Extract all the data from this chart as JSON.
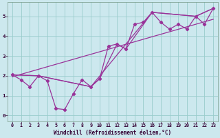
{
  "title": "",
  "xlabel": "Windchill (Refroidissement éolien,°C)",
  "background_color": "#cce8ee",
  "line_color": "#993399",
  "grid_color": "#99cccc",
  "xlim": [
    -0.5,
    23.5
  ],
  "ylim": [
    -0.3,
    5.7
  ],
  "xticks": [
    0,
    1,
    2,
    3,
    4,
    5,
    6,
    7,
    8,
    9,
    10,
    11,
    12,
    13,
    14,
    15,
    16,
    17,
    18,
    19,
    20,
    21,
    22,
    23
  ],
  "yticks": [
    0,
    1,
    2,
    3,
    4,
    5
  ],
  "series1_x": [
    0,
    1,
    2,
    3,
    4,
    5,
    6,
    7,
    8,
    9,
    10,
    11,
    12,
    13,
    14,
    15,
    16,
    17,
    18,
    19,
    20,
    21,
    22,
    23
  ],
  "series1_y": [
    2.05,
    1.8,
    1.45,
    2.0,
    1.75,
    0.35,
    0.3,
    1.1,
    1.8,
    1.45,
    1.85,
    3.5,
    3.6,
    3.35,
    4.6,
    4.7,
    5.2,
    4.7,
    4.35,
    4.6,
    4.35,
    5.0,
    4.6,
    5.4
  ],
  "series2_x": [
    0,
    3,
    9,
    10,
    12,
    13,
    16,
    21,
    23
  ],
  "series2_y": [
    2.05,
    2.0,
    1.45,
    1.85,
    3.6,
    3.35,
    5.2,
    5.0,
    5.4
  ],
  "series3_x": [
    0,
    3,
    9,
    16,
    21,
    23
  ],
  "series3_y": [
    2.05,
    2.0,
    1.45,
    5.2,
    5.0,
    5.4
  ],
  "trend_x": [
    0,
    23
  ],
  "trend_y": [
    1.95,
    4.85
  ],
  "xlabel_fontsize": 5.5,
  "xlabel_color": "#330033",
  "tick_fontsize": 4.8,
  "tick_color": "#330033",
  "marker": "D",
  "markersize": 2.2,
  "linewidth": 0.9
}
